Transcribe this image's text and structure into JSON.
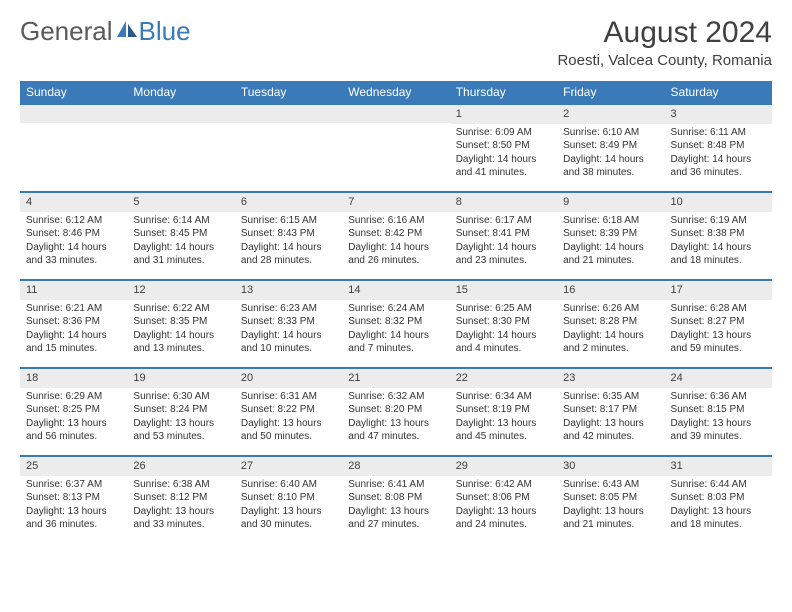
{
  "logo": {
    "part1": "General",
    "part2": "Blue"
  },
  "title": "August 2024",
  "location": "Roesti, Valcea County, Romania",
  "colors": {
    "header_bg": "#3a7ab8",
    "header_text": "#ffffff",
    "daynum_bg": "#ececec",
    "border_top": "#3a7ab8",
    "logo_gray": "#5a5a5a",
    "logo_blue": "#3a7ab8"
  },
  "weekdays": [
    "Sunday",
    "Monday",
    "Tuesday",
    "Wednesday",
    "Thursday",
    "Friday",
    "Saturday"
  ],
  "weeks": [
    [
      null,
      null,
      null,
      null,
      {
        "n": "1",
        "sr": "6:09 AM",
        "ss": "8:50 PM",
        "dl": "14 hours and 41 minutes."
      },
      {
        "n": "2",
        "sr": "6:10 AM",
        "ss": "8:49 PM",
        "dl": "14 hours and 38 minutes."
      },
      {
        "n": "3",
        "sr": "6:11 AM",
        "ss": "8:48 PM",
        "dl": "14 hours and 36 minutes."
      }
    ],
    [
      {
        "n": "4",
        "sr": "6:12 AM",
        "ss": "8:46 PM",
        "dl": "14 hours and 33 minutes."
      },
      {
        "n": "5",
        "sr": "6:14 AM",
        "ss": "8:45 PM",
        "dl": "14 hours and 31 minutes."
      },
      {
        "n": "6",
        "sr": "6:15 AM",
        "ss": "8:43 PM",
        "dl": "14 hours and 28 minutes."
      },
      {
        "n": "7",
        "sr": "6:16 AM",
        "ss": "8:42 PM",
        "dl": "14 hours and 26 minutes."
      },
      {
        "n": "8",
        "sr": "6:17 AM",
        "ss": "8:41 PM",
        "dl": "14 hours and 23 minutes."
      },
      {
        "n": "9",
        "sr": "6:18 AM",
        "ss": "8:39 PM",
        "dl": "14 hours and 21 minutes."
      },
      {
        "n": "10",
        "sr": "6:19 AM",
        "ss": "8:38 PM",
        "dl": "14 hours and 18 minutes."
      }
    ],
    [
      {
        "n": "11",
        "sr": "6:21 AM",
        "ss": "8:36 PM",
        "dl": "14 hours and 15 minutes."
      },
      {
        "n": "12",
        "sr": "6:22 AM",
        "ss": "8:35 PM",
        "dl": "14 hours and 13 minutes."
      },
      {
        "n": "13",
        "sr": "6:23 AM",
        "ss": "8:33 PM",
        "dl": "14 hours and 10 minutes."
      },
      {
        "n": "14",
        "sr": "6:24 AM",
        "ss": "8:32 PM",
        "dl": "14 hours and 7 minutes."
      },
      {
        "n": "15",
        "sr": "6:25 AM",
        "ss": "8:30 PM",
        "dl": "14 hours and 4 minutes."
      },
      {
        "n": "16",
        "sr": "6:26 AM",
        "ss": "8:28 PM",
        "dl": "14 hours and 2 minutes."
      },
      {
        "n": "17",
        "sr": "6:28 AM",
        "ss": "8:27 PM",
        "dl": "13 hours and 59 minutes."
      }
    ],
    [
      {
        "n": "18",
        "sr": "6:29 AM",
        "ss": "8:25 PM",
        "dl": "13 hours and 56 minutes."
      },
      {
        "n": "19",
        "sr": "6:30 AM",
        "ss": "8:24 PM",
        "dl": "13 hours and 53 minutes."
      },
      {
        "n": "20",
        "sr": "6:31 AM",
        "ss": "8:22 PM",
        "dl": "13 hours and 50 minutes."
      },
      {
        "n": "21",
        "sr": "6:32 AM",
        "ss": "8:20 PM",
        "dl": "13 hours and 47 minutes."
      },
      {
        "n": "22",
        "sr": "6:34 AM",
        "ss": "8:19 PM",
        "dl": "13 hours and 45 minutes."
      },
      {
        "n": "23",
        "sr": "6:35 AM",
        "ss": "8:17 PM",
        "dl": "13 hours and 42 minutes."
      },
      {
        "n": "24",
        "sr": "6:36 AM",
        "ss": "8:15 PM",
        "dl": "13 hours and 39 minutes."
      }
    ],
    [
      {
        "n": "25",
        "sr": "6:37 AM",
        "ss": "8:13 PM",
        "dl": "13 hours and 36 minutes."
      },
      {
        "n": "26",
        "sr": "6:38 AM",
        "ss": "8:12 PM",
        "dl": "13 hours and 33 minutes."
      },
      {
        "n": "27",
        "sr": "6:40 AM",
        "ss": "8:10 PM",
        "dl": "13 hours and 30 minutes."
      },
      {
        "n": "28",
        "sr": "6:41 AM",
        "ss": "8:08 PM",
        "dl": "13 hours and 27 minutes."
      },
      {
        "n": "29",
        "sr": "6:42 AM",
        "ss": "8:06 PM",
        "dl": "13 hours and 24 minutes."
      },
      {
        "n": "30",
        "sr": "6:43 AM",
        "ss": "8:05 PM",
        "dl": "13 hours and 21 minutes."
      },
      {
        "n": "31",
        "sr": "6:44 AM",
        "ss": "8:03 PM",
        "dl": "13 hours and 18 minutes."
      }
    ]
  ],
  "labels": {
    "sunrise": "Sunrise:",
    "sunset": "Sunset:",
    "daylight": "Daylight:"
  }
}
